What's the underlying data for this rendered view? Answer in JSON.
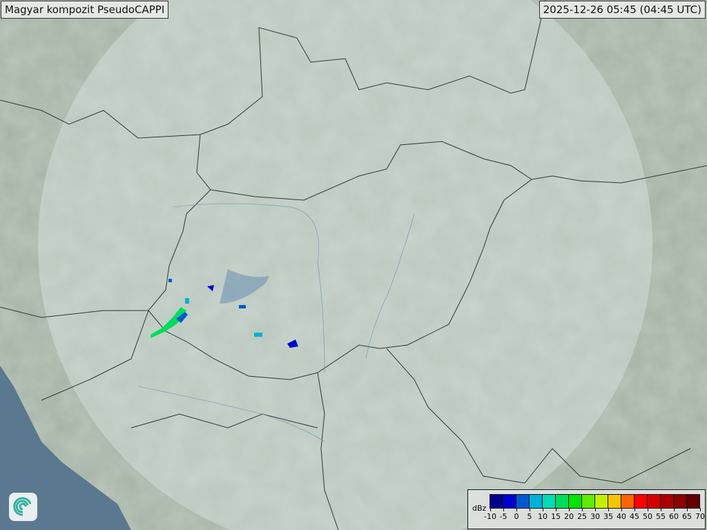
{
  "header": {
    "title": "Magyar kompozit  PseudoCAPPI",
    "timestamp": "2025-12-26 05:45 (04:45 UTC)"
  },
  "legend": {
    "unit": "dBz",
    "ticks": [
      "-10",
      "-5",
      "0",
      "5",
      "10",
      "15",
      "20",
      "25",
      "30",
      "35",
      "40",
      "45",
      "50",
      "55",
      "60",
      "65",
      "70"
    ],
    "colors": [
      "#00008c",
      "#0000d0",
      "#0058d0",
      "#00b0d8",
      "#00dcb4",
      "#00dc5c",
      "#00e400",
      "#60ec00",
      "#c4f000",
      "#f4c400",
      "#ff6400",
      "#ff0000",
      "#d40000",
      "#ac0000",
      "#880000",
      "#640000"
    ]
  },
  "map": {
    "land_color": "#a6b4a6",
    "sea_color": "#5a7890",
    "radar_coverage_color": "#d8e6e0",
    "logo": "met-service-swirl-logo"
  }
}
